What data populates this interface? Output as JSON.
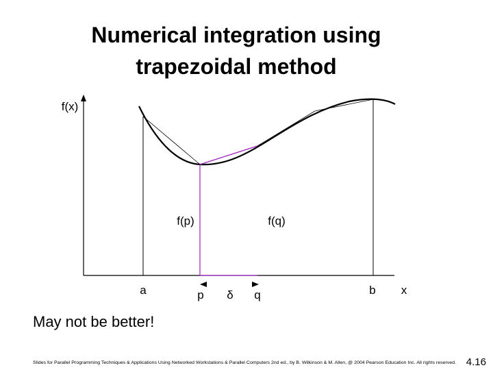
{
  "title": {
    "lines": [
      "Numerical integration using",
      "trapezoidal method"
    ]
  },
  "diagram": {
    "y_axis_label": "f(x)",
    "x_axis_label": "x",
    "a": "a",
    "p": "p",
    "delta": "δ",
    "q": "q",
    "b": "b",
    "fp": "f(p)",
    "fq": "f(q)"
  },
  "caption": "May not be better!",
  "footer": {
    "text": "Slides for Parallel Programming Techniques & Applications Using Networked Workstations & Parallel Computers 2nd ed., by B. Wilkinson & M. Allen, @ 2004 Pearson Education Inc. All rights reserved.",
    "page": "4.16"
  }
}
